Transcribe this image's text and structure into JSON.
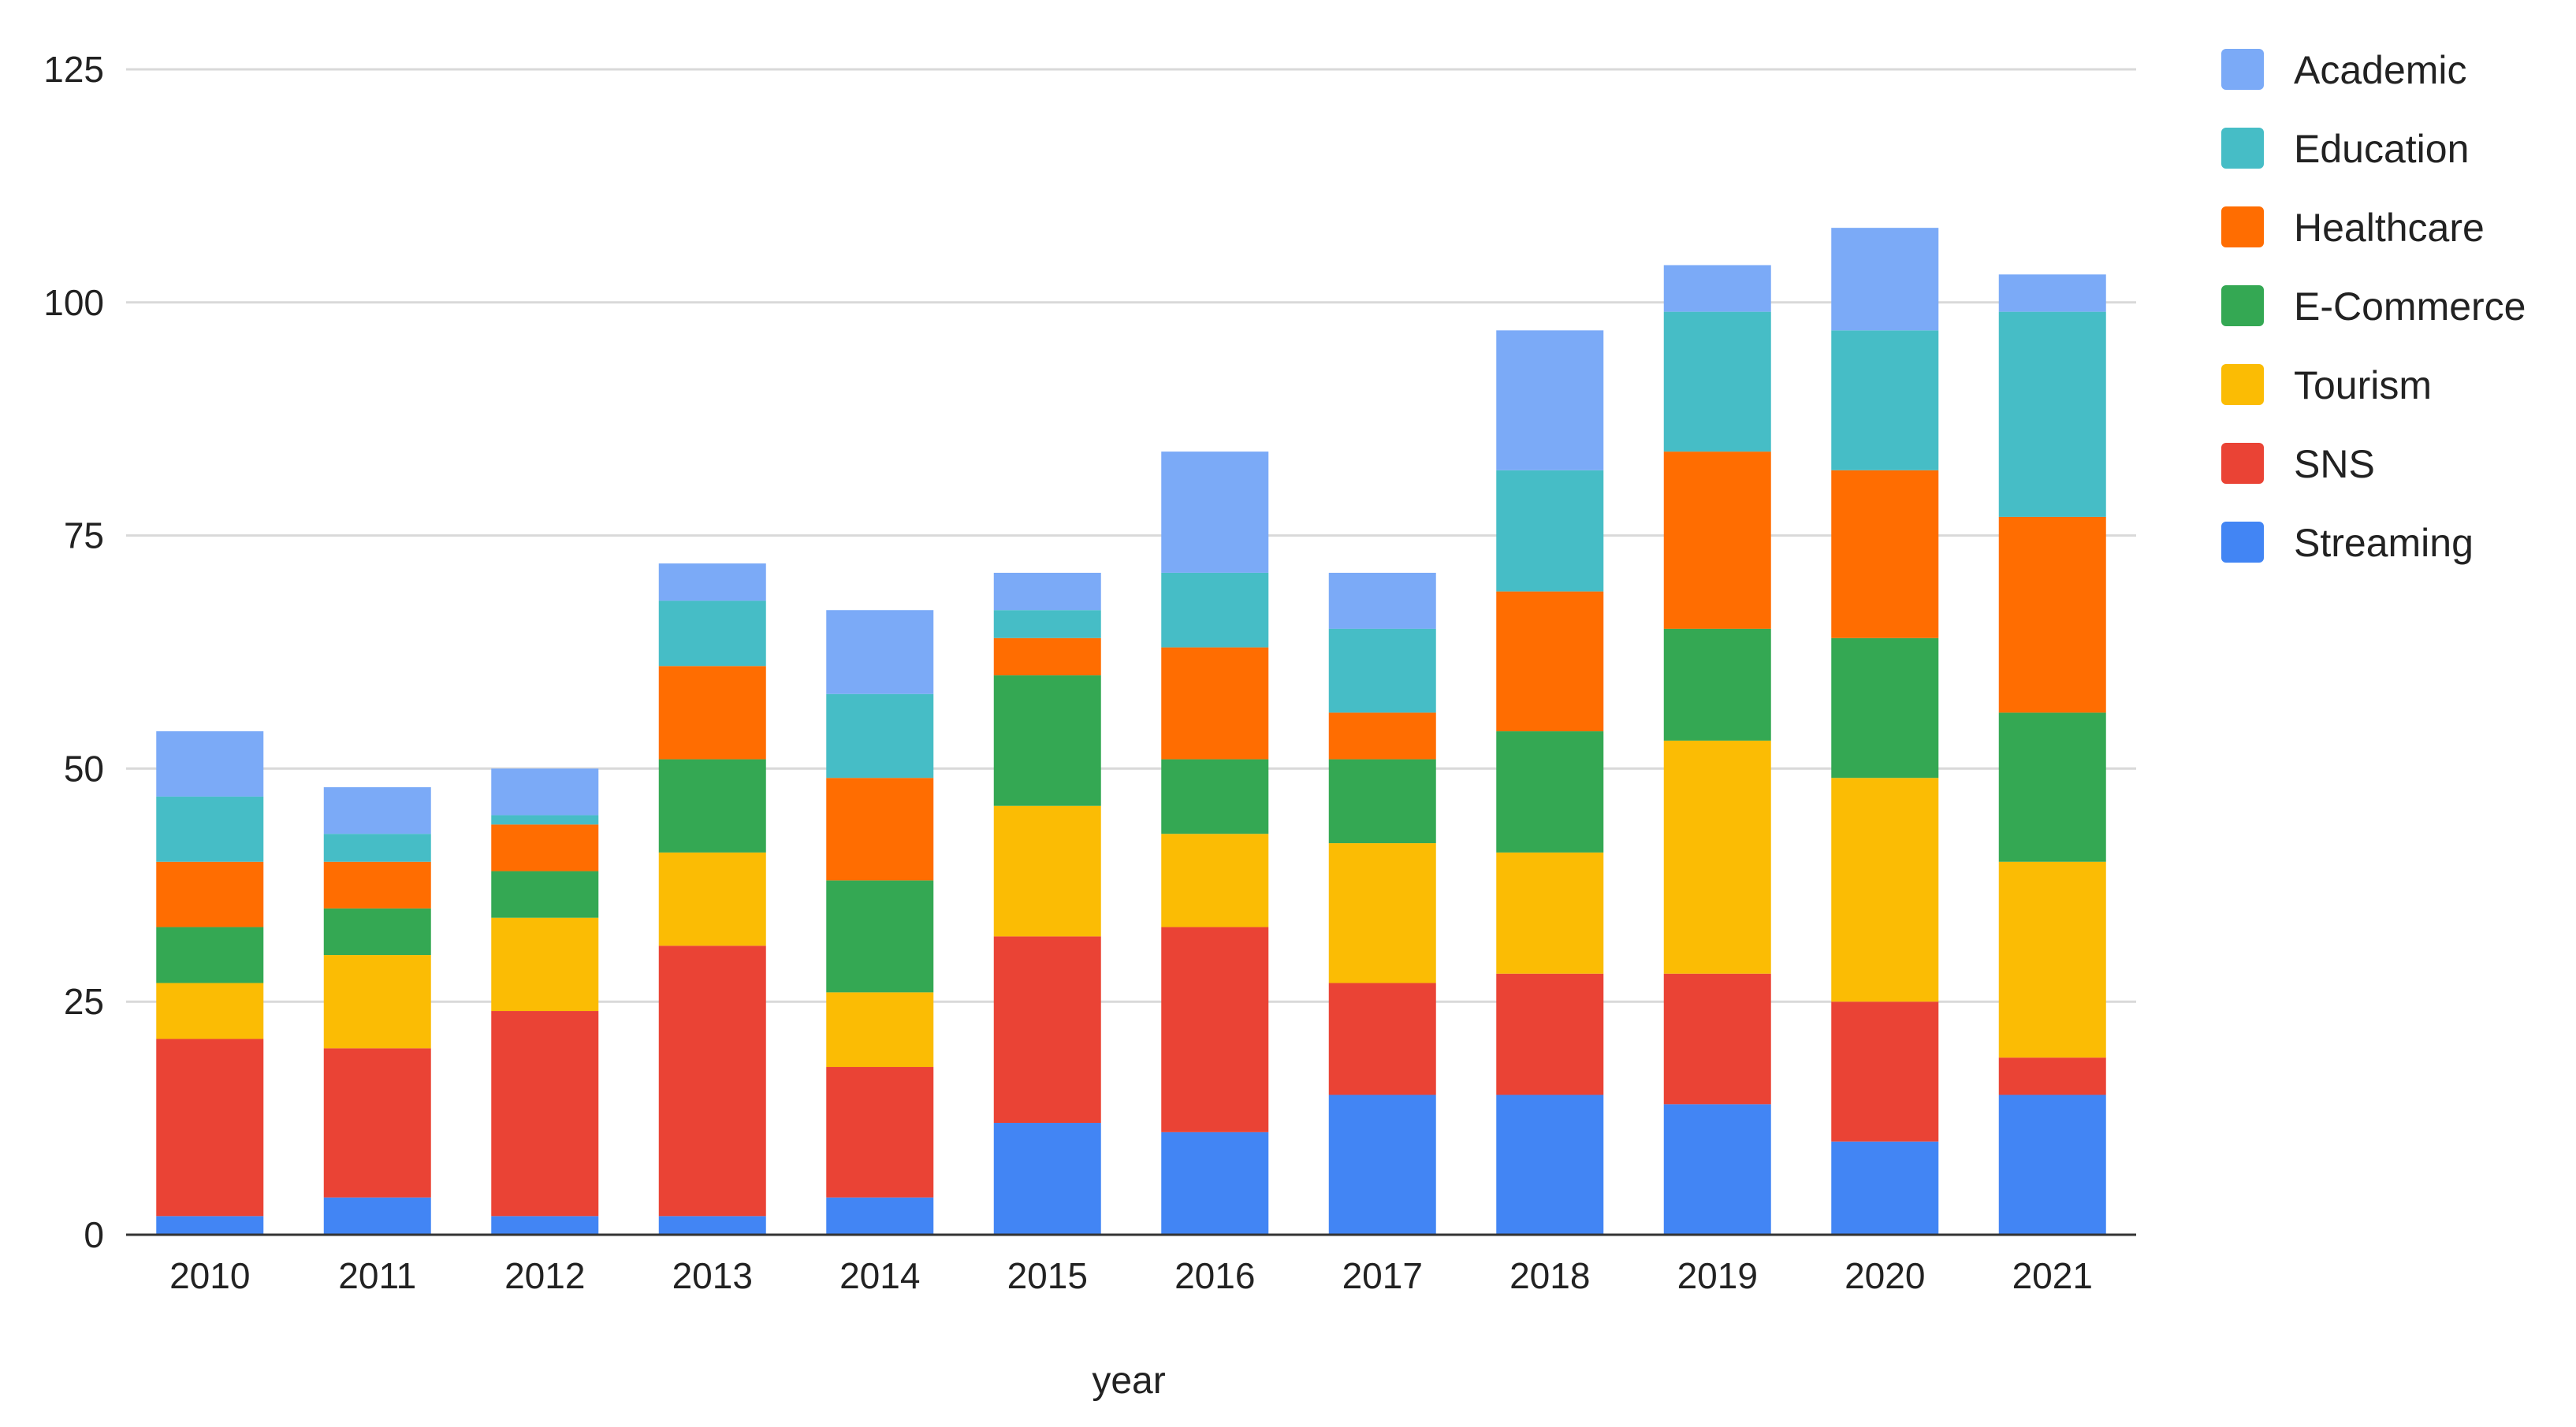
{
  "chart_data": {
    "type": "bar",
    "stacked": true,
    "title": "",
    "xlabel": "year",
    "ylabel": "",
    "ylim": [
      0,
      125
    ],
    "yticks": [
      0,
      25,
      50,
      75,
      100,
      125
    ],
    "grid": true,
    "legend_position": "right",
    "categories": [
      "2010",
      "2011",
      "2012",
      "2013",
      "2014",
      "2015",
      "2016",
      "2017",
      "2018",
      "2019",
      "2020",
      "2021"
    ],
    "series": [
      {
        "name": "Streaming",
        "color": "#4285F4",
        "values": [
          2,
          4,
          2,
          2,
          4,
          12,
          11,
          15,
          15,
          14,
          10,
          15
        ]
      },
      {
        "name": "SNS",
        "color": "#EA4335",
        "values": [
          19,
          16,
          22,
          29,
          14,
          20,
          22,
          12,
          13,
          14,
          15,
          4
        ]
      },
      {
        "name": "Tourism",
        "color": "#FBBC04",
        "values": [
          6,
          10,
          10,
          10,
          8,
          14,
          10,
          15,
          13,
          25,
          24,
          21
        ]
      },
      {
        "name": "E-Commerce",
        "color": "#34A853",
        "values": [
          6,
          5,
          5,
          10,
          12,
          14,
          8,
          9,
          13,
          12,
          15,
          16
        ]
      },
      {
        "name": "Healthcare",
        "color": "#FF6D01",
        "values": [
          7,
          5,
          5,
          10,
          11,
          4,
          12,
          5,
          15,
          19,
          18,
          21
        ]
      },
      {
        "name": "Education",
        "color": "#46BDC6",
        "values": [
          7,
          3,
          1,
          7,
          9,
          3,
          8,
          9,
          13,
          15,
          15,
          22
        ]
      },
      {
        "name": "Academic",
        "color": "#7BAAF7",
        "values": [
          7,
          5,
          5,
          4,
          9,
          4,
          13,
          6,
          15,
          5,
          11,
          4
        ]
      }
    ],
    "legend_order": [
      "Academic",
      "Education",
      "Healthcare",
      "E-Commerce",
      "Tourism",
      "SNS",
      "Streaming"
    ]
  }
}
